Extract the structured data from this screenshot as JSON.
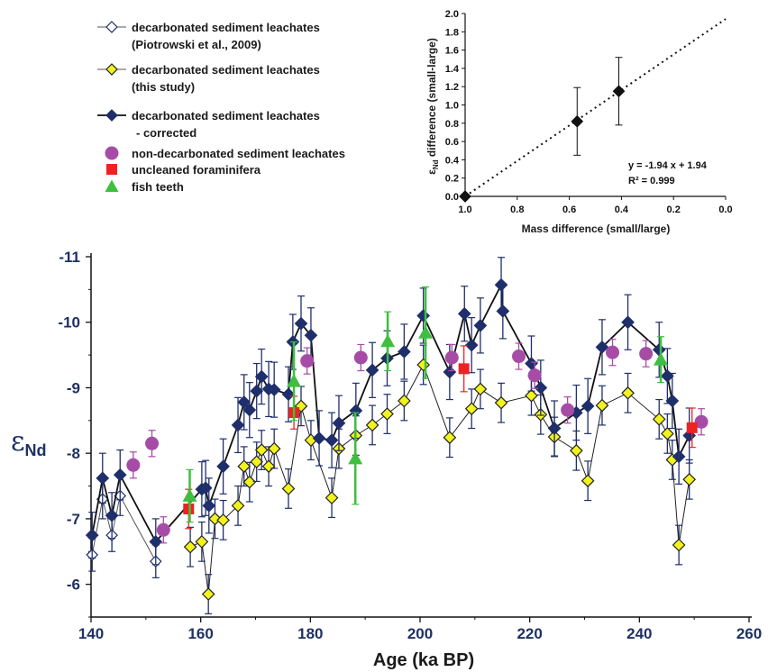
{
  "colors": {
    "navy": "#1f2f6b",
    "yellow": "#f2f21f",
    "purple": "#a64ca6",
    "red": "#ee2222",
    "green": "#3fbf3f",
    "axis_text": "#1f3163"
  },
  "legend": {
    "items": [
      {
        "id": "piotrowski",
        "lines": [
          "decarbonated sediment leachates",
          "(Piotrowski et al., 2009)"
        ],
        "symbol": "open-diamond-line"
      },
      {
        "id": "this-study",
        "lines": [
          "decarbonated sediment leachates",
          "(this study)"
        ],
        "symbol": "yellow-diamond-line"
      },
      {
        "id": "corrected",
        "lines": [
          "decarbonated sediment leachates",
          "- corrected"
        ],
        "symbol": "navy-diamond-line"
      },
      {
        "id": "non-decarb",
        "lines": [
          "non-decarbonated sediment leachates"
        ],
        "symbol": "purple-circle"
      },
      {
        "id": "forams",
        "lines": [
          "uncleaned foraminifera"
        ],
        "symbol": "red-square"
      },
      {
        "id": "fish",
        "lines": [
          "fish teeth"
        ],
        "symbol": "green-triangle"
      }
    ]
  },
  "chart_data": [
    {
      "type": "scatter",
      "xlabel": "Age (ka BP)",
      "ylabel": "εNd",
      "ylabel_main": "ε",
      "ylabel_sub": "Nd",
      "xlim": [
        140,
        260
      ],
      "ylim": [
        -5.5,
        -11
      ],
      "y_inverted": true,
      "x_ticks": [
        140,
        160,
        180,
        200,
        220,
        240,
        260
      ],
      "x_tick_labels": [
        "140",
        "160",
        "180",
        "200",
        "220",
        "240",
        "260"
      ],
      "y_ticks": [
        -6,
        -7,
        -8,
        -9,
        -10,
        -11
      ],
      "y_tick_labels": [
        "-6",
        "-7",
        "-8",
        "-9",
        "-10",
        "-11"
      ],
      "series": [
        {
          "name": "decarbonated sediment leachates (Piotrowski et al., 2009)",
          "marker": "open-diamond",
          "connected": true,
          "x": [
            140.2,
            142.1,
            143.8,
            145.3,
            151.8
          ],
          "y": [
            -6.45,
            -7.3,
            -6.75,
            -7.35,
            -6.35
          ],
          "err": [
            0.25,
            0.3,
            0.25,
            0.3,
            0.25
          ]
        },
        {
          "name": "decarbonated sediment leachates (this study)",
          "marker": "yellow-diamond",
          "connected": true,
          "x": [
            158.1,
            160.2,
            161.4,
            162.6,
            164.1,
            166.8,
            167.9,
            168.9,
            170.2,
            171.1,
            172.4,
            173.4,
            176.0,
            178.3,
            180.1,
            183.9,
            185.2,
            188.3,
            191.3,
            194.0,
            197.1,
            200.6,
            205.4,
            209.4,
            211.0,
            214.8,
            220.3,
            222.0,
            224.5,
            228.5,
            230.6,
            233.2,
            237.9,
            243.6,
            245.1,
            246.0,
            247.2,
            249.1
          ],
          "y": [
            -6.57,
            -6.65,
            -5.85,
            -7.0,
            -6.98,
            -7.2,
            -7.8,
            -7.56,
            -7.87,
            -8.05,
            -7.8,
            -8.07,
            -7.46,
            -8.72,
            -8.2,
            -7.32,
            -8.07,
            -8.27,
            -8.43,
            -8.6,
            -8.8,
            -9.35,
            -8.24,
            -8.68,
            -8.98,
            -8.77,
            -8.88,
            -8.59,
            -8.25,
            -8.04,
            -7.58,
            -8.73,
            -8.92,
            -8.52,
            -8.3,
            -7.9,
            -6.6,
            -7.6
          ],
          "err": [
            0.3,
            0.3,
            0.3,
            0.3,
            0.3,
            0.3,
            0.3,
            0.3,
            0.3,
            0.3,
            0.3,
            0.3,
            0.3,
            0.3,
            0.3,
            0.3,
            0.3,
            0.3,
            0.3,
            0.3,
            0.3,
            0.3,
            0.3,
            0.3,
            0.3,
            0.3,
            0.3,
            0.3,
            0.3,
            0.3,
            0.3,
            0.3,
            0.3,
            0.3,
            0.3,
            0.3,
            0.3,
            0.3
          ]
        },
        {
          "name": "decarbonated sediment leachates - corrected",
          "marker": "navy-diamond",
          "connected": true,
          "x": [
            140.2,
            142.1,
            143.8,
            145.3,
            151.8,
            160.2,
            160.9,
            161.5,
            164.1,
            166.8,
            167.9,
            168.9,
            170.2,
            171.1,
            172.4,
            173.4,
            176.0,
            176.8,
            178.3,
            180.1,
            181.6,
            183.9,
            185.2,
            188.3,
            191.3,
            194.0,
            197.1,
            200.6,
            205.4,
            208.1,
            209.4,
            211.0,
            214.8,
            215.1,
            220.3,
            222.0,
            224.5,
            228.5,
            230.6,
            233.2,
            237.9,
            243.6,
            245.1,
            246.0,
            247.2,
            249.1
          ],
          "y": [
            -6.75,
            -7.62,
            -7.05,
            -7.67,
            -6.65,
            -7.45,
            -7.47,
            -7.2,
            -7.8,
            -8.43,
            -8.78,
            -8.66,
            -8.95,
            -9.17,
            -8.98,
            -8.97,
            -8.9,
            -9.7,
            -9.98,
            -9.8,
            -8.23,
            -8.2,
            -8.46,
            -8.65,
            -9.27,
            -9.45,
            -9.55,
            -10.1,
            -9.24,
            -10.13,
            -9.65,
            -9.95,
            -10.57,
            -10.17,
            -9.37,
            -9.0,
            -8.38,
            -8.62,
            -8.72,
            -9.62,
            -10.0,
            -9.58,
            -9.18,
            -8.8,
            -7.95,
            -8.27
          ],
          "err": [
            0.35,
            0.38,
            0.35,
            0.38,
            0.35,
            0.42,
            0.42,
            0.42,
            0.42,
            0.42,
            0.42,
            0.42,
            0.42,
            0.42,
            0.42,
            0.42,
            0.42,
            0.42,
            0.42,
            0.42,
            0.42,
            0.42,
            0.42,
            0.42,
            0.42,
            0.42,
            0.42,
            0.42,
            0.42,
            0.42,
            0.42,
            0.42,
            0.42,
            0.42,
            0.42,
            0.42,
            0.42,
            0.42,
            0.42,
            0.42,
            0.42,
            0.42,
            0.42,
            0.42,
            0.42,
            0.42
          ]
        },
        {
          "name": "non-decarbonated sediment leachates",
          "marker": "purple-circle",
          "connected": false,
          "x": [
            147.7,
            151.1,
            153.2,
            179.4,
            189.2,
            205.8,
            218.0,
            220.9,
            226.9,
            235.1,
            241.2,
            251.3
          ],
          "y": [
            -7.82,
            -8.15,
            -6.83,
            -9.41,
            -9.46,
            -9.46,
            -9.48,
            -9.19,
            -8.66,
            -9.54,
            -9.52,
            -8.48
          ],
          "err": [
            0.2,
            0.2,
            0.2,
            0.2,
            0.2,
            0.2,
            0.2,
            0.2,
            0.2,
            0.2,
            0.2,
            0.2
          ]
        },
        {
          "name": "uncleaned foraminifera",
          "marker": "red-square",
          "connected": false,
          "x": [
            157.8,
            177.0,
            208.0,
            249.6
          ],
          "y": [
            -7.15,
            -8.62,
            -9.29,
            -8.39
          ],
          "err": [
            0.3,
            0.25,
            0.35,
            0.3
          ]
        },
        {
          "name": "fish teeth",
          "marker": "green-triangle",
          "connected": false,
          "x": [
            158.0,
            177.0,
            188.2,
            194.1,
            201.0,
            243.9
          ],
          "y": [
            -7.35,
            -9.1,
            -7.92,
            -9.71,
            -9.84,
            -9.43
          ],
          "err": [
            0.4,
            0.6,
            0.7,
            0.45,
            0.7,
            0.35
          ]
        }
      ]
    },
    {
      "type": "scatter",
      "xlabel": "Mass difference (small/large)",
      "ylabel": "εNd difference (small-large)",
      "ylabel_main": "ε",
      "ylabel_sub": "Nd",
      "ylabel_rest": " difference (small-large)",
      "xlim": [
        1.0,
        0.0
      ],
      "ylim": [
        0.0,
        2.0
      ],
      "x_ticks": [
        1.0,
        0.8,
        0.6,
        0.4,
        0.2,
        0.0
      ],
      "x_tick_labels": [
        "1.0",
        "0.8",
        "0.6",
        "0.4",
        "0.2",
        "0.0"
      ],
      "y_ticks": [
        0.0,
        0.2,
        0.4,
        0.6,
        0.8,
        1.0,
        1.2,
        1.4,
        1.6,
        1.8,
        2.0
      ],
      "y_tick_labels": [
        "0.0",
        "0.2",
        "0.4",
        "0.6",
        "0.8",
        "1.0",
        "1.2",
        "1.4",
        "1.6",
        "1.8",
        "2.0"
      ],
      "points": {
        "x": [
          1.0,
          0.57,
          0.41
        ],
        "y": [
          0.0,
          0.82,
          1.15
        ],
        "err": [
          0.0,
          0.37,
          0.37
        ]
      },
      "fit": {
        "slope": -1.94,
        "intercept": 1.94
      },
      "annotations": [
        "y = -1.94 x + 1.94",
        "R² = 0.999"
      ]
    }
  ]
}
